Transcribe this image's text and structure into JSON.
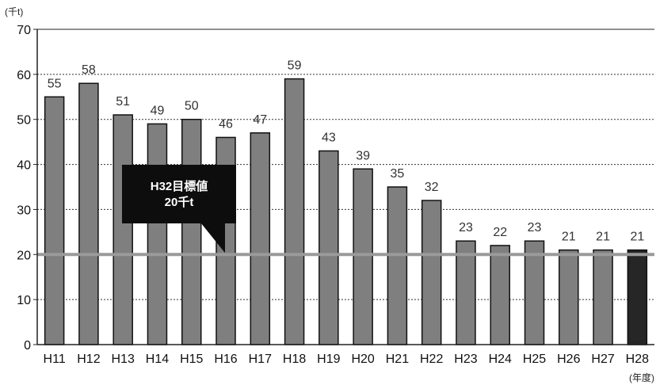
{
  "chart_data": {
    "type": "bar",
    "categories": [
      "H11",
      "H12",
      "H13",
      "H14",
      "H15",
      "H16",
      "H17",
      "H18",
      "H19",
      "H20",
      "H21",
      "H22",
      "H23",
      "H24",
      "H25",
      "H26",
      "H27",
      "H28"
    ],
    "values": [
      55,
      58,
      51,
      49,
      50,
      46,
      47,
      59,
      43,
      39,
      35,
      32,
      23,
      22,
      23,
      21,
      21,
      21
    ],
    "ylabel": "(千t)",
    "xlabel": "(年度)",
    "ylim": [
      0,
      70
    ],
    "yticks": [
      0,
      10,
      20,
      30,
      40,
      50,
      60,
      70
    ],
    "grid": true,
    "target_line": {
      "value": 20,
      "label_line1": "H32目標値",
      "label_line2": "20千t"
    },
    "colors": {
      "bar": "#7f7f7f",
      "bar_last": "#262626",
      "target": "#9a9a9a",
      "callout": "#0d0d0d"
    }
  }
}
